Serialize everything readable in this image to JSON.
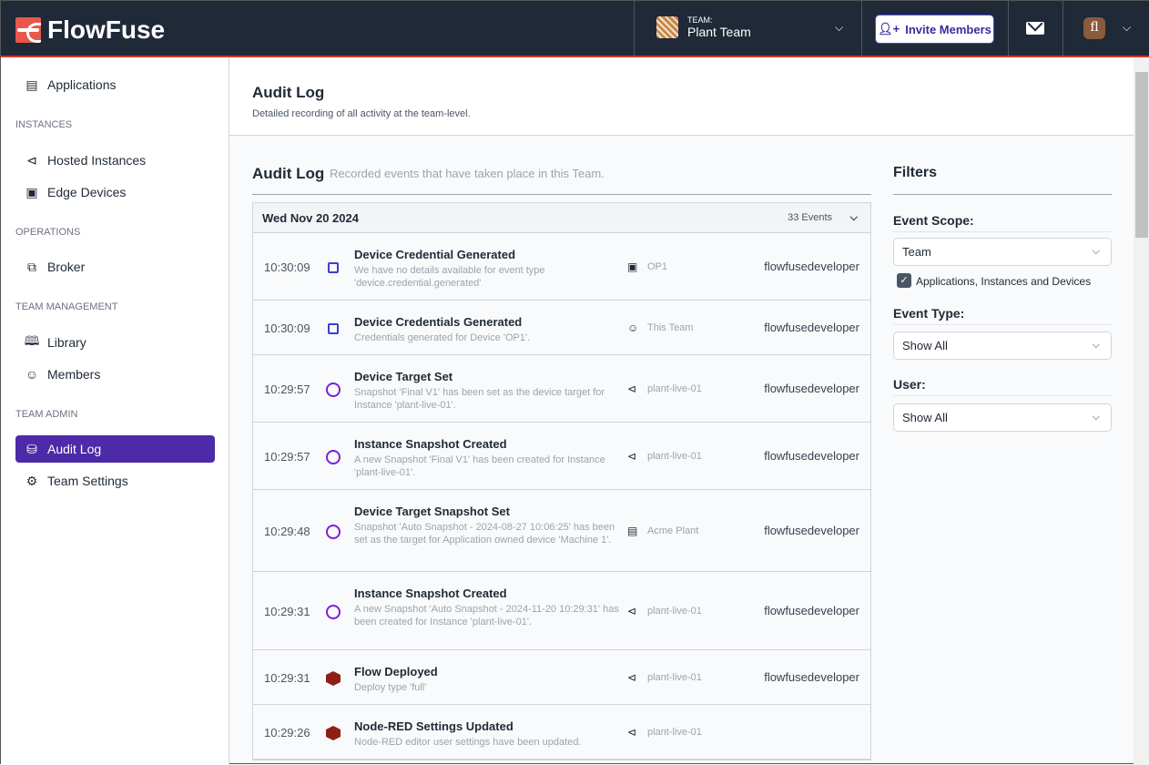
{
  "header": {
    "brand": "FlowFuse",
    "team_label": "TEAM:",
    "team_name": "Plant Team",
    "invite_label": "Invite Members",
    "user_initials": "fl"
  },
  "sidebar": {
    "applications": "Applications",
    "sections": [
      "INSTANCES",
      "OPERATIONS",
      "TEAM MANAGEMENT",
      "TEAM ADMIN"
    ],
    "items": [
      "Hosted Instances",
      "Edge Devices",
      "Broker",
      "Library",
      "Members",
      "Audit Log",
      "Team Settings"
    ]
  },
  "page": {
    "title": "Audit Log",
    "subtitle": "Detailed recording of all activity at the team-level."
  },
  "audit": {
    "title": "Audit Log",
    "subtitle": "Recorded events that have taken place in this Team.",
    "date": "Wed Nov 20 2024",
    "count": "33 Events",
    "events": [
      {
        "time": "10:30:09",
        "icon": "chip-icon",
        "title": "Device Credential Generated",
        "desc": "We have no details available for event type 'device.credential.generated'",
        "scope_icon": "chip-icon",
        "scope": "OP1",
        "user": "flowfusedeveloper"
      },
      {
        "time": "10:30:09",
        "icon": "chip-icon",
        "title": "Device Credentials Generated",
        "desc": "Credentials generated for Device 'OP1'.",
        "scope_icon": "team-icon",
        "scope": "This Team",
        "user": "flowfusedeveloper"
      },
      {
        "time": "10:29:57",
        "icon": "clock-icon",
        "title": "Device Target Set",
        "desc": "Snapshot 'Final V1' has been set as the device target for Instance 'plant-live-01'.",
        "scope_icon": "instance-icon",
        "scope": "plant-live-01",
        "user": "flowfusedeveloper"
      },
      {
        "time": "10:29:57",
        "icon": "clock-icon",
        "title": "Instance Snapshot Created",
        "desc": "A new Snapshot 'Final V1' has been created for Instance 'plant-live-01'.",
        "scope_icon": "instance-icon",
        "scope": "plant-live-01",
        "user": "flowfusedeveloper"
      },
      {
        "time": "10:29:48",
        "icon": "clock-icon",
        "title": "Device Target Snapshot Set",
        "desc": "Snapshot 'Auto Snapshot - 2024-08-27 10:06:25' has been set as the target for Application owned device 'Machine 1'.",
        "scope_icon": "application-icon",
        "scope": "Acme Plant",
        "user": "flowfusedeveloper"
      },
      {
        "time": "10:29:31",
        "icon": "clock-icon",
        "title": "Instance Snapshot Created",
        "desc": "A new Snapshot 'Auto Snapshot - 2024-11-20 10:29:31' has been created for Instance 'plant-live-01'.",
        "scope_icon": "instance-icon",
        "scope": "plant-live-01",
        "user": "flowfusedeveloper"
      },
      {
        "time": "10:29:31",
        "icon": "node-red-icon",
        "title": "Flow Deployed",
        "desc": "Deploy type 'full'",
        "scope_icon": "instance-icon",
        "scope": "plant-live-01",
        "user": "flowfusedeveloper"
      },
      {
        "time": "10:29:26",
        "icon": "node-red-icon",
        "title": "Node-RED Settings Updated",
        "desc": "Node-RED editor user settings have been updated.",
        "scope_icon": "instance-icon",
        "scope": "plant-live-01",
        "user": ""
      }
    ]
  },
  "filters": {
    "title": "Filters",
    "scope_label": "Event Scope:",
    "scope_value": "Team",
    "include_children": "Applications, Instances and Devices",
    "type_label": "Event Type:",
    "type_value": "Show All",
    "user_label": "User:",
    "user_value": "Show All"
  },
  "colors": {
    "header_bg": "#1f2937",
    "accent": "#d6322d",
    "active_nav": "#4c2aa8"
  }
}
